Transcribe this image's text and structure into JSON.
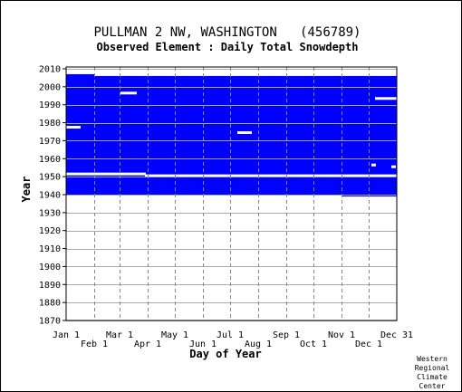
{
  "chart_data": {
    "type": "heatmap",
    "title": "PULLMAN 2 NW, WASHINGTON   (456789)",
    "subtitle": "Observed Element : Daily Total Snowdepth",
    "xlabel": "Day of Year",
    "ylabel": "Year",
    "ylim": [
      1870,
      2011
    ],
    "xlim": [
      1,
      365
    ],
    "x_ticks_upper": [
      {
        "label": "Jan 1",
        "day": 1
      },
      {
        "label": "Mar 1",
        "day": 60
      },
      {
        "label": "May 1",
        "day": 121
      },
      {
        "label": "Jul 1",
        "day": 182
      },
      {
        "label": "Sep 1",
        "day": 244
      },
      {
        "label": "Nov 1",
        "day": 305
      },
      {
        "label": "Dec 31",
        "day": 365
      }
    ],
    "x_ticks_lower": [
      {
        "label": "Feb 1",
        "day": 32
      },
      {
        "label": "Apr 1",
        "day": 91
      },
      {
        "label": "Jun 1",
        "day": 152
      },
      {
        "label": "Aug 1",
        "day": 213
      },
      {
        "label": "Oct 1",
        "day": 274
      },
      {
        "label": "Dec 1",
        "day": 335
      }
    ],
    "y_ticks": [
      2010,
      2000,
      1990,
      1980,
      1970,
      1960,
      1950,
      1940,
      1930,
      1920,
      1910,
      1900,
      1890,
      1880,
      1870
    ],
    "grid": true,
    "series": [
      {
        "color": "#0000ff",
        "records_present": [
          {
            "year_start": 1940,
            "year_end": 2006,
            "day_start": 1,
            "day_end": 31
          },
          {
            "year_start": 1940,
            "year_end": 2005,
            "day_start": 32,
            "day_end": 365
          },
          {
            "year_start": 1939,
            "year_end": 1940,
            "day_start": 305,
            "day_end": 365
          }
        ],
        "missing_gaps": [
          {
            "year": 1977,
            "day_start": 1,
            "day_end": 16
          },
          {
            "year": 1996,
            "day_start": 61,
            "day_end": 78
          },
          {
            "year": 1974,
            "day_start": 190,
            "day_end": 205
          },
          {
            "year": 1951,
            "day_start": 1,
            "day_end": 88
          },
          {
            "year": 1950,
            "day_start": 88,
            "day_end": 365
          },
          {
            "year": 1993,
            "day_start": 342,
            "day_end": 365
          },
          {
            "year": 1956,
            "day_start": 338,
            "day_end": 342
          },
          {
            "year": 1955,
            "day_start": 360,
            "day_end": 364
          }
        ]
      }
    ]
  },
  "credit": [
    "Western",
    "Regional",
    "Climate",
    "Center"
  ]
}
